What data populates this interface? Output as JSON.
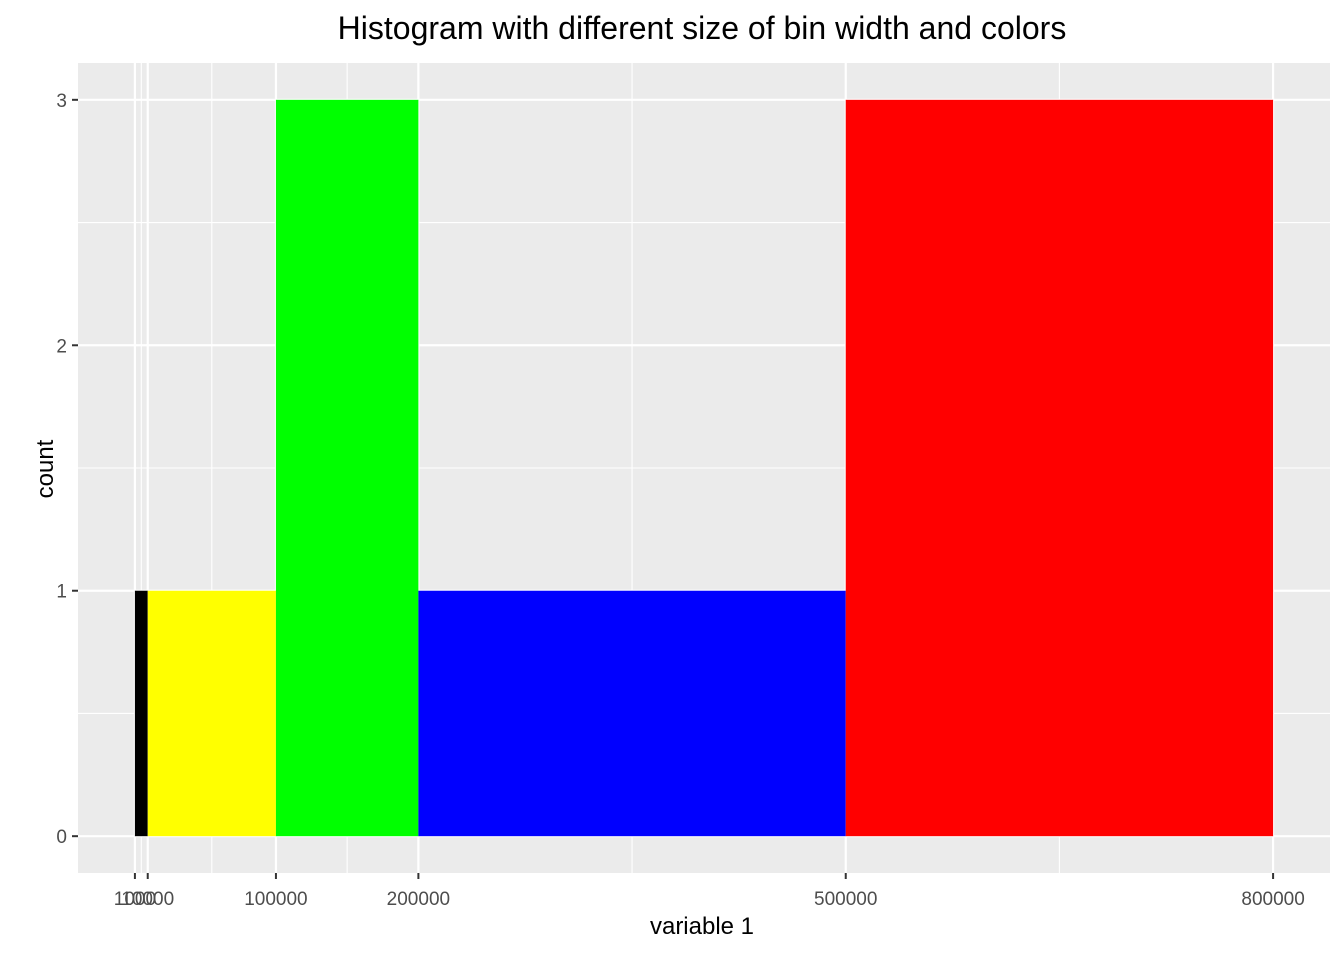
{
  "chart_data": {
    "type": "bar",
    "title": "Histogram with different size of bin width and colors",
    "xlabel": "variable 1",
    "ylabel": "count",
    "bins": [
      {
        "xmin": 1000,
        "xmax": 10000,
        "count": 1,
        "color": "#000000"
      },
      {
        "xmin": 10000,
        "xmax": 100000,
        "count": 1,
        "color": "#FFFF00"
      },
      {
        "xmin": 100000,
        "xmax": 200000,
        "count": 3,
        "color": "#00FF00"
      },
      {
        "xmin": 200000,
        "xmax": 500000,
        "count": 1,
        "color": "#0000FF"
      },
      {
        "xmin": 500000,
        "xmax": 800000,
        "count": 3,
        "color": "#FF0000"
      }
    ],
    "x_ticks": [
      "1000",
      "10000",
      "100000",
      "200000",
      "500000",
      "800000"
    ],
    "x_tick_values": [
      1000,
      10000,
      100000,
      200000,
      500000,
      800000
    ],
    "y_ticks": [
      "0",
      "1",
      "2",
      "3"
    ],
    "y_tick_values": [
      0,
      1,
      2,
      3
    ],
    "xlim": [
      -38950,
      839950
    ],
    "ylim": [
      -0.15,
      3.15
    ],
    "grid": true,
    "panel_background": "#EBEBEB",
    "gridline_color": "#FFFFFF"
  }
}
